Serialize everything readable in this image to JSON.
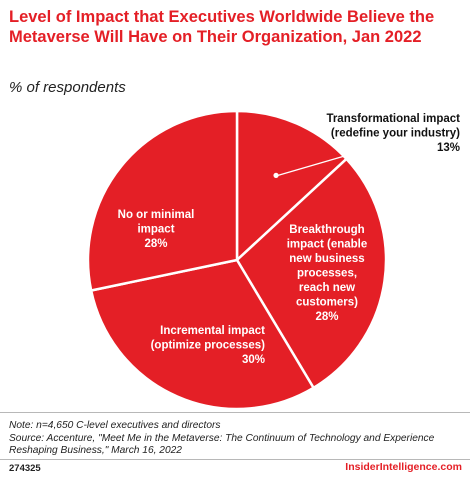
{
  "header": {
    "title": "Level of Impact that Executives Worldwide Believe the Metaverse Will Have on Their Organization, Jan 2022",
    "subtitle": "% of respondents"
  },
  "chart_data": {
    "type": "pie",
    "title": "Level of Impact that Executives Worldwide Believe the Metaverse Will Have on Their Organization, Jan 2022",
    "subtitle": "% of respondents",
    "slices": [
      {
        "label": "Transformational impact (redefine your industry)",
        "value": 13,
        "lines": [
          "Transformational impact",
          "(redefine your industry)"
        ],
        "pct": "13%"
      },
      {
        "label": "Breakthrough impact (enable new business processes, reach new customers)",
        "value": 28,
        "lines": [
          "Breakthrough",
          "impact (enable",
          "new business",
          "processes,",
          "reach new",
          "customers)"
        ],
        "pct": "28%"
      },
      {
        "label": "Incremental impact (optimize processes)",
        "value": 30,
        "lines": [
          "Incremental impact",
          "(optimize processes)"
        ],
        "pct": "30%"
      },
      {
        "label": "No or minimal impact",
        "value": 28,
        "lines": [
          "No or minimal",
          "impact"
        ],
        "pct": "28%"
      }
    ],
    "colors": {
      "slice": "#e41f26",
      "border": "#ffffff",
      "label_dark": "#111111",
      "label_light": "#ffffff"
    }
  },
  "footer": {
    "note": "Note: n=4,650 C-level executives and directors",
    "source": "Source: Accenture, \"Meet Me in the Metaverse: The Continuum of Technology and Experience Reshaping Business,\" March 16, 2022",
    "id": "274325",
    "brand": "InsiderIntelligence.com"
  }
}
